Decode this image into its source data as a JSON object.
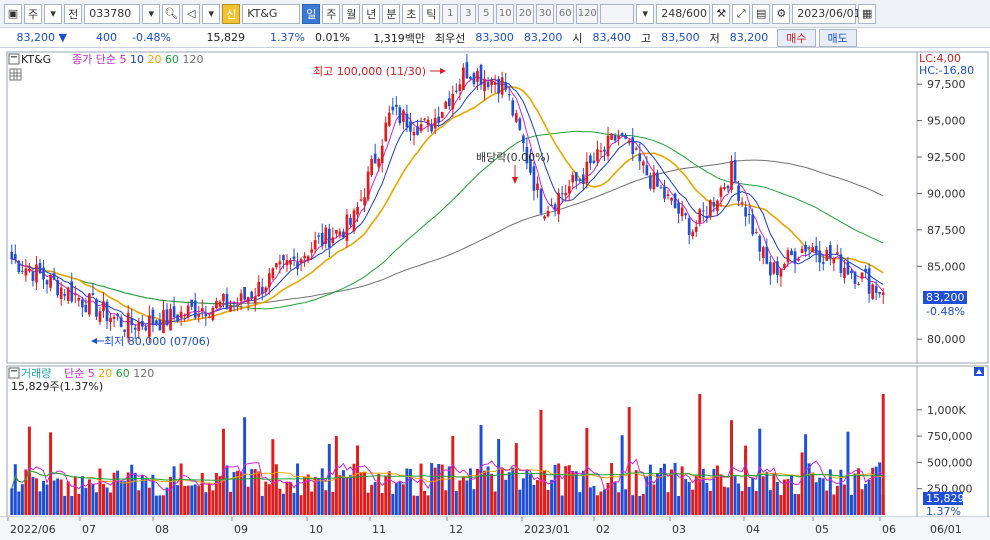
{
  "toolbar": {
    "market_label": "주",
    "prev_label": "전",
    "code": "033780",
    "stock_name": "KT&G",
    "credit_badge": "신",
    "periods": [
      "일",
      "주",
      "월",
      "년",
      "분",
      "초",
      "틱"
    ],
    "numbers": [
      "1",
      "3",
      "5",
      "10",
      "20",
      "30",
      "60",
      "120"
    ],
    "count": "248/600",
    "date": "2023/06/01"
  },
  "quote": {
    "price": "83,200",
    "change": "400",
    "change_pct": "-0.48%",
    "volume": "15,829",
    "vol_ratio": "1.37%",
    "turnover": "0.01%",
    "amount": "1,319백만",
    "best_label": "최우선",
    "best_ask": "83,300",
    "best_bid": "83,200",
    "open_label": "시",
    "open": "83,400",
    "high_label": "고",
    "high": "83,500",
    "low_label": "저",
    "low": "83,200",
    "buy_label": "매수",
    "sell_label": "매도"
  },
  "price_panel": {
    "legend_name": "KT&G",
    "legend_ma": "종가 단순",
    "ma_periods": [
      "5",
      "10",
      "20",
      "60",
      "120"
    ],
    "lc": "LC:4,00",
    "hc": "HC:-16,80",
    "current_price": "83,200",
    "current_pct": "-0.48%",
    "high_annotation": "최고 100,000 (11/30)",
    "low_annotation": "최저 80,000 (07/06)",
    "dividend_annotation": "배당락(0.00%)",
    "y_ticks": [
      "97,500",
      "95,000",
      "92,500",
      "90,000",
      "87,500",
      "85,000",
      "80,000"
    ]
  },
  "volume_panel": {
    "legend_name": "거래량",
    "legend_ma": "단순",
    "ma_periods": [
      "5",
      "20",
      "60",
      "120"
    ],
    "info": "15,829주(1.37%)",
    "current_volume": "15,829",
    "current_pct": "1.37%",
    "y_ticks": [
      "1,000K",
      "750,000",
      "500,000",
      "250,000"
    ]
  },
  "x_axis": {
    "labels": [
      "2022/06",
      "07",
      "08",
      "09",
      "10",
      "11",
      "12",
      "2023/01",
      "02",
      "03",
      "04",
      "05",
      "06"
    ],
    "right_label": "06/01"
  },
  "colors": {
    "up": "#e01c1c",
    "down": "#1f4fd6",
    "ma5": "#d226d2",
    "ma10": "#1a3fc8",
    "ma20": "#e8a600",
    "ma60": "#1fa33a",
    "ma120": "#707070"
  },
  "chart_data": {
    "type": "candlestick",
    "x_range": [
      "2022/06",
      "2023/06/01"
    ],
    "y_range": [
      78500,
      99500
    ],
    "highest": {
      "value": 100000,
      "date": "11/30"
    },
    "lowest": {
      "value": 80000,
      "date": "07/06"
    },
    "close_path": [
      {
        "m": "2022/06",
        "v": 85500
      },
      {
        "m": "2022/06",
        "v": 84000
      },
      {
        "m": "07",
        "v": 82500
      },
      {
        "m": "07",
        "v": 81000
      },
      {
        "m": "08",
        "v": 81300
      },
      {
        "m": "08",
        "v": 82200
      },
      {
        "m": "09",
        "v": 82500
      },
      {
        "m": "09",
        "v": 84500
      },
      {
        "m": "10",
        "v": 86500
      },
      {
        "m": "10",
        "v": 88000
      },
      {
        "m": "11",
        "v": 95500
      },
      {
        "m": "11",
        "v": 94500
      },
      {
        "m": "12",
        "v": 98500
      },
      {
        "m": "12",
        "v": 97500
      },
      {
        "m": "2023/01",
        "v": 89000
      },
      {
        "m": "2023/01",
        "v": 91000
      },
      {
        "m": "02",
        "v": 94000
      },
      {
        "m": "02",
        "v": 90500
      },
      {
        "m": "03",
        "v": 87500
      },
      {
        "m": "03",
        "v": 91500
      },
      {
        "m": "04",
        "v": 84500
      },
      {
        "m": "04",
        "v": 86500
      },
      {
        "m": "05",
        "v": 85000
      },
      {
        "m": "05",
        "v": 83200
      }
    ],
    "volume_max_k": 1150
  }
}
